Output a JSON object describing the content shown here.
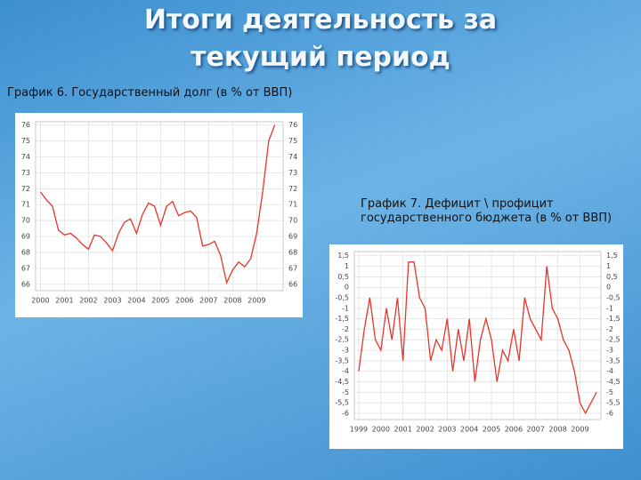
{
  "slide": {
    "title": "Итоги деятельность за текущий период"
  },
  "chart_data": [
    {
      "type": "line",
      "title": "График 6. Государственный долг (в % от ВВП)",
      "x": [
        2000,
        2000.25,
        2000.5,
        2000.75,
        2001,
        2001.25,
        2001.5,
        2001.75,
        2002,
        2002.25,
        2002.5,
        2002.75,
        2003,
        2003.25,
        2003.5,
        2003.75,
        2004,
        2004.25,
        2004.5,
        2004.75,
        2005,
        2005.25,
        2005.5,
        2005.75,
        2006,
        2006.25,
        2006.5,
        2006.75,
        2007,
        2007.25,
        2007.5,
        2007.75,
        2008,
        2008.25,
        2008.5,
        2008.75,
        2009,
        2009.25,
        2009.5,
        2009.75
      ],
      "series": [
        {
          "color": "#e8342a",
          "values": [
            71.8,
            71.3,
            70.9,
            69.4,
            69.1,
            69.2,
            68.9,
            68.5,
            68.2,
            69.1,
            69.0,
            68.6,
            68.1,
            69.2,
            69.9,
            70.1,
            69.2,
            70.4,
            71.1,
            70.9,
            69.7,
            70.9,
            71.2,
            70.3,
            70.5,
            70.6,
            70.2,
            68.4,
            68.5,
            68.7,
            67.8,
            66.1,
            66.9,
            67.4,
            67.1,
            67.6,
            69.2,
            71.8,
            75.0,
            76.0
          ]
        }
      ],
      "xlim": [
        1999.8,
        2010.1
      ],
      "xticks": [
        2000,
        2001,
        2002,
        2003,
        2004,
        2005,
        2006,
        2007,
        2008,
        2009
      ],
      "ylim": [
        65.6,
        76.2
      ],
      "yticks": [
        66,
        67,
        68,
        69,
        70,
        71,
        72,
        73,
        74,
        75,
        76
      ],
      "grid": true
    },
    {
      "type": "line",
      "title": "График  7. Дефицит \\ профицит государственного бюджета (в % от ВВП)",
      "x": [
        1999,
        1999.25,
        1999.5,
        1999.75,
        2000,
        2000.25,
        2000.5,
        2000.75,
        2001,
        2001.25,
        2001.5,
        2001.75,
        2002,
        2002.25,
        2002.5,
        2002.75,
        2003,
        2003.25,
        2003.5,
        2003.75,
        2004,
        2004.25,
        2004.5,
        2004.75,
        2005,
        2005.25,
        2005.5,
        2005.75,
        2006,
        2006.25,
        2006.5,
        2006.75,
        2007,
        2007.25,
        2007.5,
        2007.75,
        2008,
        2008.25,
        2008.5,
        2008.75,
        2009,
        2009.25,
        2009.5,
        2009.75
      ],
      "series": [
        {
          "color": "#e8342a",
          "values": [
            -4,
            -2,
            -0.5,
            -2.5,
            -3,
            -1,
            -2.5,
            -0.5,
            -3.5,
            1.2,
            1.2,
            -0.5,
            -1,
            -3.5,
            -2.5,
            -3,
            -1.5,
            -4,
            -2,
            -3.5,
            -1.5,
            -4.5,
            -2.5,
            -1.5,
            -2.5,
            -4.5,
            -3,
            -3.5,
            -2,
            -3.5,
            -0.5,
            -1.5,
            -2,
            -2.5,
            1,
            -1,
            -1.5,
            -2.5,
            -3,
            -4,
            -5.5,
            -6,
            -5.5,
            -5
          ]
        }
      ],
      "xlim": [
        1998.8,
        2009.95
      ],
      "xticks": [
        1999,
        2000,
        2001,
        2002,
        2003,
        2004,
        2005,
        2006,
        2007,
        2008,
        2009
      ],
      "ylim": [
        -6.3,
        1.7
      ],
      "yticks": [
        {
          "value": 1.5,
          "label": "1,5"
        },
        1,
        {
          "value": 0.5,
          "label": "0,5"
        },
        0,
        {
          "value": -0.5,
          "label": "-0,5"
        },
        -1,
        {
          "value": -1.5,
          "label": "-1,5"
        },
        -2,
        {
          "value": -2.5,
          "label": "-2,5"
        },
        -3,
        {
          "value": -3.5,
          "label": "-3,5"
        },
        -4,
        {
          "value": -4.5,
          "label": "-4,5"
        },
        -5,
        {
          "value": -5.5,
          "label": "-5,5"
        },
        -6
      ],
      "grid": true
    }
  ]
}
